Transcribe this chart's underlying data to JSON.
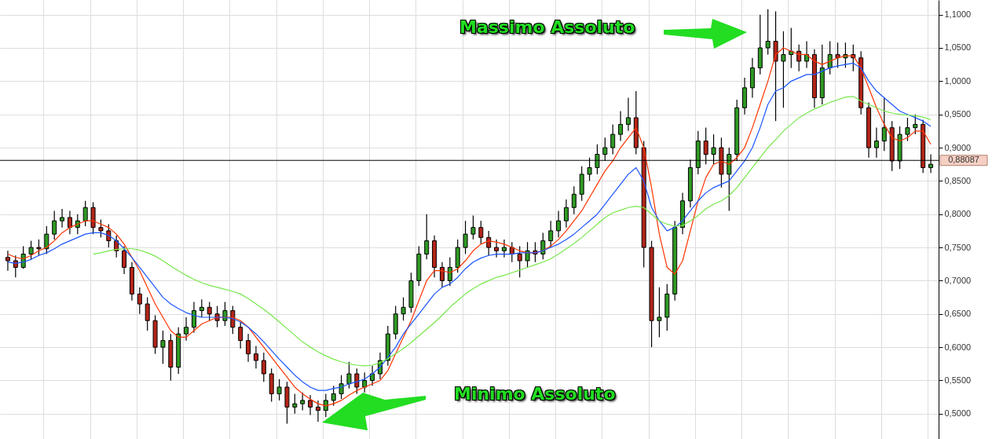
{
  "chart_data": {
    "type": "candlestick",
    "categories": [
      null,
      null,
      null,
      null,
      null,
      null,
      null,
      null,
      null,
      null,
      null,
      null,
      null,
      null,
      null,
      null,
      null,
      null,
      null,
      null,
      null,
      null,
      null,
      null,
      null,
      null,
      null,
      null,
      null,
      null,
      null,
      null,
      null,
      null,
      null,
      null,
      null,
      null,
      null,
      null,
      null,
      null,
      null,
      null,
      null,
      null,
      null,
      null,
      null,
      null,
      null,
      null,
      null,
      null,
      null,
      null,
      null,
      null,
      null,
      null,
      null,
      null,
      null,
      null,
      null,
      null,
      null,
      null,
      null,
      null,
      null,
      null,
      null,
      null,
      null,
      null,
      null,
      null,
      null,
      null,
      null,
      null,
      null,
      null,
      null,
      null,
      null,
      null,
      null,
      null,
      null,
      null,
      null,
      null,
      null,
      null,
      null,
      null,
      null,
      null,
      null,
      null,
      null,
      null,
      null,
      null,
      null,
      null,
      null,
      null,
      null,
      null,
      null,
      null,
      null,
      null,
      null,
      null,
      null,
      null
    ],
    "ohlc": [
      [
        0.735,
        0.745,
        0.715,
        0.73
      ],
      [
        0.73,
        0.738,
        0.705,
        0.72
      ],
      [
        0.72,
        0.752,
        0.718,
        0.74
      ],
      [
        0.74,
        0.76,
        0.732,
        0.75
      ],
      [
        0.75,
        0.762,
        0.738,
        0.748
      ],
      [
        0.748,
        0.782,
        0.74,
        0.77
      ],
      [
        0.77,
        0.805,
        0.762,
        0.79
      ],
      [
        0.79,
        0.808,
        0.78,
        0.795
      ],
      [
        0.795,
        0.805,
        0.77,
        0.78
      ],
      [
        0.78,
        0.8,
        0.77,
        0.79
      ],
      [
        0.79,
        0.82,
        0.782,
        0.81
      ],
      [
        0.81,
        0.818,
        0.77,
        0.78
      ],
      [
        0.78,
        0.792,
        0.765,
        0.775
      ],
      [
        0.775,
        0.785,
        0.75,
        0.76
      ],
      [
        0.76,
        0.768,
        0.735,
        0.745
      ],
      [
        0.745,
        0.752,
        0.71,
        0.72
      ],
      [
        0.72,
        0.728,
        0.67,
        0.68
      ],
      [
        0.68,
        0.69,
        0.65,
        0.665
      ],
      [
        0.665,
        0.675,
        0.625,
        0.64
      ],
      [
        0.64,
        0.648,
        0.59,
        0.6
      ],
      [
        0.6,
        0.625,
        0.575,
        0.61
      ],
      [
        0.61,
        0.62,
        0.55,
        0.57
      ],
      [
        0.57,
        0.63,
        0.56,
        0.62
      ],
      [
        0.62,
        0.645,
        0.61,
        0.63
      ],
      [
        0.63,
        0.668,
        0.622,
        0.655
      ],
      [
        0.655,
        0.672,
        0.645,
        0.66
      ],
      [
        0.66,
        0.668,
        0.64,
        0.65
      ],
      [
        0.65,
        0.662,
        0.63,
        0.64
      ],
      [
        0.64,
        0.668,
        0.632,
        0.655
      ],
      [
        0.655,
        0.662,
        0.62,
        0.63
      ],
      [
        0.63,
        0.638,
        0.598,
        0.61
      ],
      [
        0.61,
        0.62,
        0.578,
        0.59
      ],
      [
        0.59,
        0.602,
        0.568,
        0.58
      ],
      [
        0.58,
        0.592,
        0.548,
        0.56
      ],
      [
        0.56,
        0.568,
        0.518,
        0.53
      ],
      [
        0.53,
        0.552,
        0.52,
        0.54
      ],
      [
        0.54,
        0.548,
        0.485,
        0.51
      ],
      [
        0.51,
        0.53,
        0.5,
        0.515
      ],
      [
        0.515,
        0.532,
        0.505,
        0.52
      ],
      [
        0.52,
        0.528,
        0.498,
        0.51
      ],
      [
        0.51,
        0.52,
        0.488,
        0.505
      ],
      [
        0.505,
        0.53,
        0.495,
        0.52
      ],
      [
        0.52,
        0.542,
        0.512,
        0.53
      ],
      [
        0.53,
        0.558,
        0.522,
        0.545
      ],
      [
        0.545,
        0.578,
        0.538,
        0.56
      ],
      [
        0.56,
        0.568,
        0.53,
        0.54
      ],
      [
        0.54,
        0.562,
        0.532,
        0.55
      ],
      [
        0.55,
        0.572,
        0.542,
        0.56
      ],
      [
        0.56,
        0.592,
        0.552,
        0.58
      ],
      [
        0.58,
        0.632,
        0.572,
        0.62
      ],
      [
        0.62,
        0.662,
        0.612,
        0.65
      ],
      [
        0.65,
        0.675,
        0.64,
        0.66
      ],
      [
        0.66,
        0.712,
        0.652,
        0.7
      ],
      [
        0.7,
        0.752,
        0.692,
        0.74
      ],
      [
        0.74,
        0.8,
        0.732,
        0.76
      ],
      [
        0.76,
        0.768,
        0.705,
        0.72
      ],
      [
        0.72,
        0.728,
        0.69,
        0.7
      ],
      [
        0.7,
        0.735,
        0.692,
        0.72
      ],
      [
        0.72,
        0.762,
        0.712,
        0.75
      ],
      [
        0.75,
        0.79,
        0.74,
        0.77
      ],
      [
        0.77,
        0.798,
        0.762,
        0.78
      ],
      [
        0.78,
        0.79,
        0.755,
        0.765
      ],
      [
        0.765,
        0.775,
        0.738,
        0.75
      ],
      [
        0.75,
        0.762,
        0.735,
        0.745
      ],
      [
        0.745,
        0.762,
        0.735,
        0.75
      ],
      [
        0.75,
        0.758,
        0.728,
        0.74
      ],
      [
        0.74,
        0.752,
        0.705,
        0.73
      ],
      [
        0.73,
        0.758,
        0.72,
        0.745
      ],
      [
        0.745,
        0.758,
        0.728,
        0.74
      ],
      [
        0.74,
        0.772,
        0.732,
        0.76
      ],
      [
        0.76,
        0.79,
        0.75,
        0.775
      ],
      [
        0.775,
        0.805,
        0.765,
        0.79
      ],
      [
        0.79,
        0.822,
        0.78,
        0.81
      ],
      [
        0.81,
        0.842,
        0.8,
        0.83
      ],
      [
        0.83,
        0.872,
        0.82,
        0.86
      ],
      [
        0.86,
        0.885,
        0.85,
        0.87
      ],
      [
        0.87,
        0.905,
        0.86,
        0.89
      ],
      [
        0.89,
        0.915,
        0.88,
        0.9
      ],
      [
        0.9,
        0.935,
        0.89,
        0.92
      ],
      [
        0.92,
        0.955,
        0.91,
        0.935
      ],
      [
        0.935,
        0.975,
        0.925,
        0.945
      ],
      [
        0.945,
        0.985,
        0.89,
        0.9
      ],
      [
        0.9,
        0.91,
        0.72,
        0.75
      ],
      [
        0.75,
        0.76,
        0.6,
        0.64
      ],
      [
        0.64,
        0.69,
        0.615,
        0.645
      ],
      [
        0.645,
        0.695,
        0.625,
        0.68
      ],
      [
        0.68,
        0.79,
        0.67,
        0.78
      ],
      [
        0.78,
        0.832,
        0.77,
        0.82
      ],
      [
        0.82,
        0.882,
        0.81,
        0.87
      ],
      [
        0.87,
        0.925,
        0.86,
        0.91
      ],
      [
        0.91,
        0.93,
        0.875,
        0.89
      ],
      [
        0.89,
        0.92,
        0.875,
        0.9
      ],
      [
        0.9,
        0.915,
        0.84,
        0.86
      ],
      [
        0.86,
        0.9,
        0.805,
        0.89
      ],
      [
        0.89,
        0.972,
        0.88,
        0.96
      ],
      [
        0.96,
        1.005,
        0.95,
        0.99
      ],
      [
        0.99,
        1.035,
        0.975,
        1.02
      ],
      [
        1.02,
        1.1,
        1.01,
        1.05
      ],
      [
        1.05,
        1.108,
        1.04,
        1.06
      ],
      [
        1.06,
        1.105,
        0.94,
        1.03
      ],
      [
        1.03,
        1.075,
        0.96,
        1.04
      ],
      [
        1.04,
        1.08,
        1.02,
        1.045
      ],
      [
        1.045,
        1.055,
        1.015,
        1.03
      ],
      [
        1.03,
        1.06,
        1.02,
        1.04
      ],
      [
        1.04,
        1.048,
        0.96,
        0.975
      ],
      [
        0.975,
        1.055,
        0.965,
        1.02
      ],
      [
        1.02,
        1.06,
        1.01,
        1.04
      ],
      [
        1.04,
        1.058,
        1.02,
        1.035
      ],
      [
        1.035,
        1.058,
        1.02,
        1.04
      ],
      [
        1.04,
        1.055,
        1.015,
        1.035
      ],
      [
        1.035,
        1.045,
        0.95,
        0.96
      ],
      [
        0.96,
        0.968,
        0.885,
        0.9
      ],
      [
        0.9,
        0.93,
        0.885,
        0.91
      ],
      [
        0.91,
        0.975,
        0.895,
        0.93
      ],
      [
        0.93,
        0.94,
        0.865,
        0.88
      ],
      [
        0.88,
        0.932,
        0.868,
        0.92
      ],
      [
        0.92,
        0.945,
        0.91,
        0.93
      ],
      [
        0.93,
        0.95,
        0.92,
        0.935
      ],
      [
        0.935,
        0.942,
        0.862,
        0.87
      ],
      [
        0.87,
        0.89,
        0.862,
        0.875
      ]
    ],
    "series": [
      {
        "type": "line",
        "color": "#ff3300",
        "values": [
          0.74,
          0.735,
          0.733,
          0.738,
          0.745,
          0.75,
          0.76,
          0.772,
          0.78,
          0.785,
          0.79,
          0.79,
          0.785,
          0.78,
          0.77,
          0.755,
          0.735,
          0.715,
          0.69,
          0.665,
          0.645,
          0.625,
          0.615,
          0.615,
          0.625,
          0.635,
          0.64,
          0.645,
          0.645,
          0.645,
          0.64,
          0.63,
          0.615,
          0.6,
          0.585,
          0.57,
          0.555,
          0.54,
          0.53,
          0.522,
          0.515,
          0.512,
          0.515,
          0.52,
          0.528,
          0.535,
          0.54,
          0.545,
          0.55,
          0.565,
          0.59,
          0.615,
          0.64,
          0.67,
          0.7,
          0.715,
          0.715,
          0.712,
          0.718,
          0.73,
          0.745,
          0.755,
          0.76,
          0.758,
          0.755,
          0.75,
          0.745,
          0.742,
          0.742,
          0.745,
          0.752,
          0.762,
          0.775,
          0.79,
          0.805,
          0.825,
          0.845,
          0.865,
          0.88,
          0.9,
          0.915,
          0.93,
          0.9,
          0.84,
          0.77,
          0.72,
          0.71,
          0.73,
          0.775,
          0.82,
          0.855,
          0.875,
          0.88,
          0.875,
          0.885,
          0.9,
          0.93,
          0.965,
          1.0,
          1.04,
          1.05,
          1.045,
          1.04,
          1.04,
          1.03,
          1.025,
          1.03,
          1.035,
          1.038,
          1.038,
          1.02,
          0.99,
          0.96,
          0.935,
          0.915,
          0.91,
          0.915,
          0.925,
          0.925,
          0.905
        ]
      },
      {
        "type": "line",
        "color": "#1a55ff",
        "values": [
          0.728,
          0.726,
          0.728,
          0.732,
          0.738,
          0.742,
          0.748,
          0.755,
          0.76,
          0.765,
          0.77,
          0.772,
          0.772,
          0.768,
          0.76,
          0.748,
          0.735,
          0.72,
          0.705,
          0.69,
          0.675,
          0.665,
          0.658,
          0.652,
          0.648,
          0.645,
          0.645,
          0.645,
          0.645,
          0.643,
          0.638,
          0.63,
          0.62,
          0.608,
          0.595,
          0.582,
          0.57,
          0.558,
          0.548,
          0.54,
          0.535,
          0.535,
          0.538,
          0.54,
          0.545,
          0.548,
          0.552,
          0.56,
          0.57,
          0.585,
          0.6,
          0.62,
          0.635,
          0.65,
          0.665,
          0.68,
          0.69,
          0.695,
          0.705,
          0.718,
          0.728,
          0.734,
          0.738,
          0.74,
          0.74,
          0.74,
          0.742,
          0.742,
          0.742,
          0.745,
          0.75,
          0.755,
          0.762,
          0.77,
          0.78,
          0.79,
          0.8,
          0.815,
          0.83,
          0.845,
          0.86,
          0.87,
          0.85,
          0.81,
          0.79,
          0.775,
          0.78,
          0.79,
          0.805,
          0.82,
          0.832,
          0.84,
          0.845,
          0.85,
          0.865,
          0.88,
          0.9,
          0.93,
          0.965,
          0.985,
          0.99,
          1.0,
          1.005,
          1.01,
          1.01,
          1.015,
          1.02,
          1.023,
          1.025,
          1.027,
          1.02,
          1.0,
          0.985,
          0.975,
          0.965,
          0.955,
          0.95,
          0.945,
          0.94,
          0.932
        ]
      },
      {
        "type": "line",
        "color": "#77e84a",
        "values": [
          null,
          null,
          null,
          null,
          null,
          null,
          null,
          null,
          null,
          null,
          null,
          0.74,
          0.742,
          0.745,
          0.747,
          0.748,
          0.748,
          0.746,
          0.742,
          0.737,
          0.73,
          0.722,
          0.715,
          0.708,
          0.702,
          0.697,
          0.693,
          0.69,
          0.687,
          0.684,
          0.68,
          0.673,
          0.665,
          0.657,
          0.648,
          0.638,
          0.628,
          0.618,
          0.608,
          0.6,
          0.593,
          0.587,
          0.582,
          0.578,
          0.575,
          0.573,
          0.572,
          0.573,
          0.577,
          0.583,
          0.59,
          0.598,
          0.607,
          0.617,
          0.627,
          0.637,
          0.648,
          0.66,
          0.67,
          0.68,
          0.688,
          0.695,
          0.7,
          0.705,
          0.708,
          0.712,
          0.716,
          0.72,
          0.724,
          0.728,
          0.733,
          0.74,
          0.748,
          0.756,
          0.765,
          0.775,
          0.785,
          0.795,
          0.802,
          0.806,
          0.81,
          0.812,
          0.81,
          0.8,
          0.79,
          0.785,
          0.782,
          0.783,
          0.79,
          0.798,
          0.808,
          0.815,
          0.82,
          0.828,
          0.84,
          0.855,
          0.87,
          0.885,
          0.9,
          0.912,
          0.925,
          0.935,
          0.945,
          0.952,
          0.958,
          0.963,
          0.968,
          0.972,
          0.976,
          0.977,
          0.97,
          0.965,
          0.96,
          0.955,
          0.952,
          0.95,
          0.949,
          0.948,
          0.946,
          0.942
        ]
      }
    ],
    "ylim": [
      0.462,
      1.122
    ],
    "yticks": [
      {
        "value": 0.5,
        "label": "0,5000"
      },
      {
        "value": 0.55,
        "label": "0,5500"
      },
      {
        "value": 0.6,
        "label": "0,6000"
      },
      {
        "value": 0.65,
        "label": "0,6500"
      },
      {
        "value": 0.7,
        "label": "0,7000"
      },
      {
        "value": 0.75,
        "label": "0,7500"
      },
      {
        "value": 0.8,
        "label": "0,8000"
      },
      {
        "value": 0.85,
        "label": "0,8500"
      },
      {
        "value": 0.9,
        "label": "0,9000"
      },
      {
        "value": 0.95,
        "label": "0,9500"
      },
      {
        "value": 1.0,
        "label": "1,0000"
      },
      {
        "value": 1.05,
        "label": "1,0500"
      },
      {
        "value": 1.1,
        "label": "1,1000"
      }
    ],
    "ref_lines": [
      {
        "axis": "y",
        "value": 0.88087,
        "label": "0,88087",
        "color": "#000000"
      }
    ],
    "annotations": [
      "Massimo Assoluto",
      "Minimo Assoluto"
    ],
    "grid": true,
    "tick_labels": "y"
  }
}
